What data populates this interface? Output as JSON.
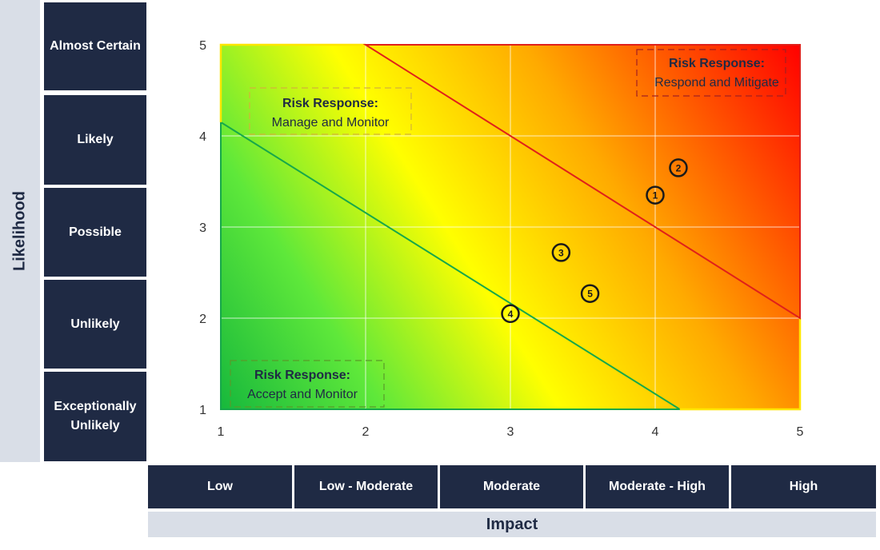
{
  "likelihood_title": "Likelihood",
  "likelihood_levels": [
    "Almost Certain",
    "Likely",
    "Possible",
    "Unlikely",
    "Exceptionally Unlikely"
  ],
  "impact_title": "Impact",
  "impact_levels": [
    "Low",
    "Low - Moderate",
    "Moderate",
    "Moderate - High",
    "High"
  ],
  "zones": {
    "accept": {
      "title": "Risk Response:",
      "text": "Accept and Monitor"
    },
    "manage": {
      "title": "Risk Response:",
      "text": "Manage and Monitor"
    },
    "respond": {
      "title": "Risk Response:",
      "text": "Respond and Mitigate"
    }
  },
  "colors": {
    "navy": "#1f2a44",
    "panel": "#d9dee7",
    "green": "#1ec41e",
    "yellow": "#ffff00",
    "red": "#ff0000",
    "green_line": "#17a84a",
    "red_line": "#e0201a"
  },
  "chart_data": {
    "type": "scatter",
    "xlim": [
      1,
      5
    ],
    "ylim": [
      1,
      5
    ],
    "x_ticks": [
      1,
      2,
      3,
      4,
      5
    ],
    "y_ticks": [
      1,
      2,
      3,
      4,
      5
    ],
    "grid": true,
    "points": [
      {
        "label": "1",
        "x": 4.0,
        "y": 3.35
      },
      {
        "label": "2",
        "x": 4.16,
        "y": 3.65
      },
      {
        "label": "3",
        "x": 3.35,
        "y": 2.72
      },
      {
        "label": "4",
        "x": 3.0,
        "y": 2.05
      },
      {
        "label": "5",
        "x": 3.55,
        "y": 2.27
      }
    ],
    "boundaries": [
      {
        "name": "green",
        "from": [
          1,
          4.15
        ],
        "to": [
          4.17,
          1
        ]
      },
      {
        "name": "red",
        "from": [
          2,
          5
        ],
        "to": [
          5,
          2
        ]
      }
    ]
  }
}
